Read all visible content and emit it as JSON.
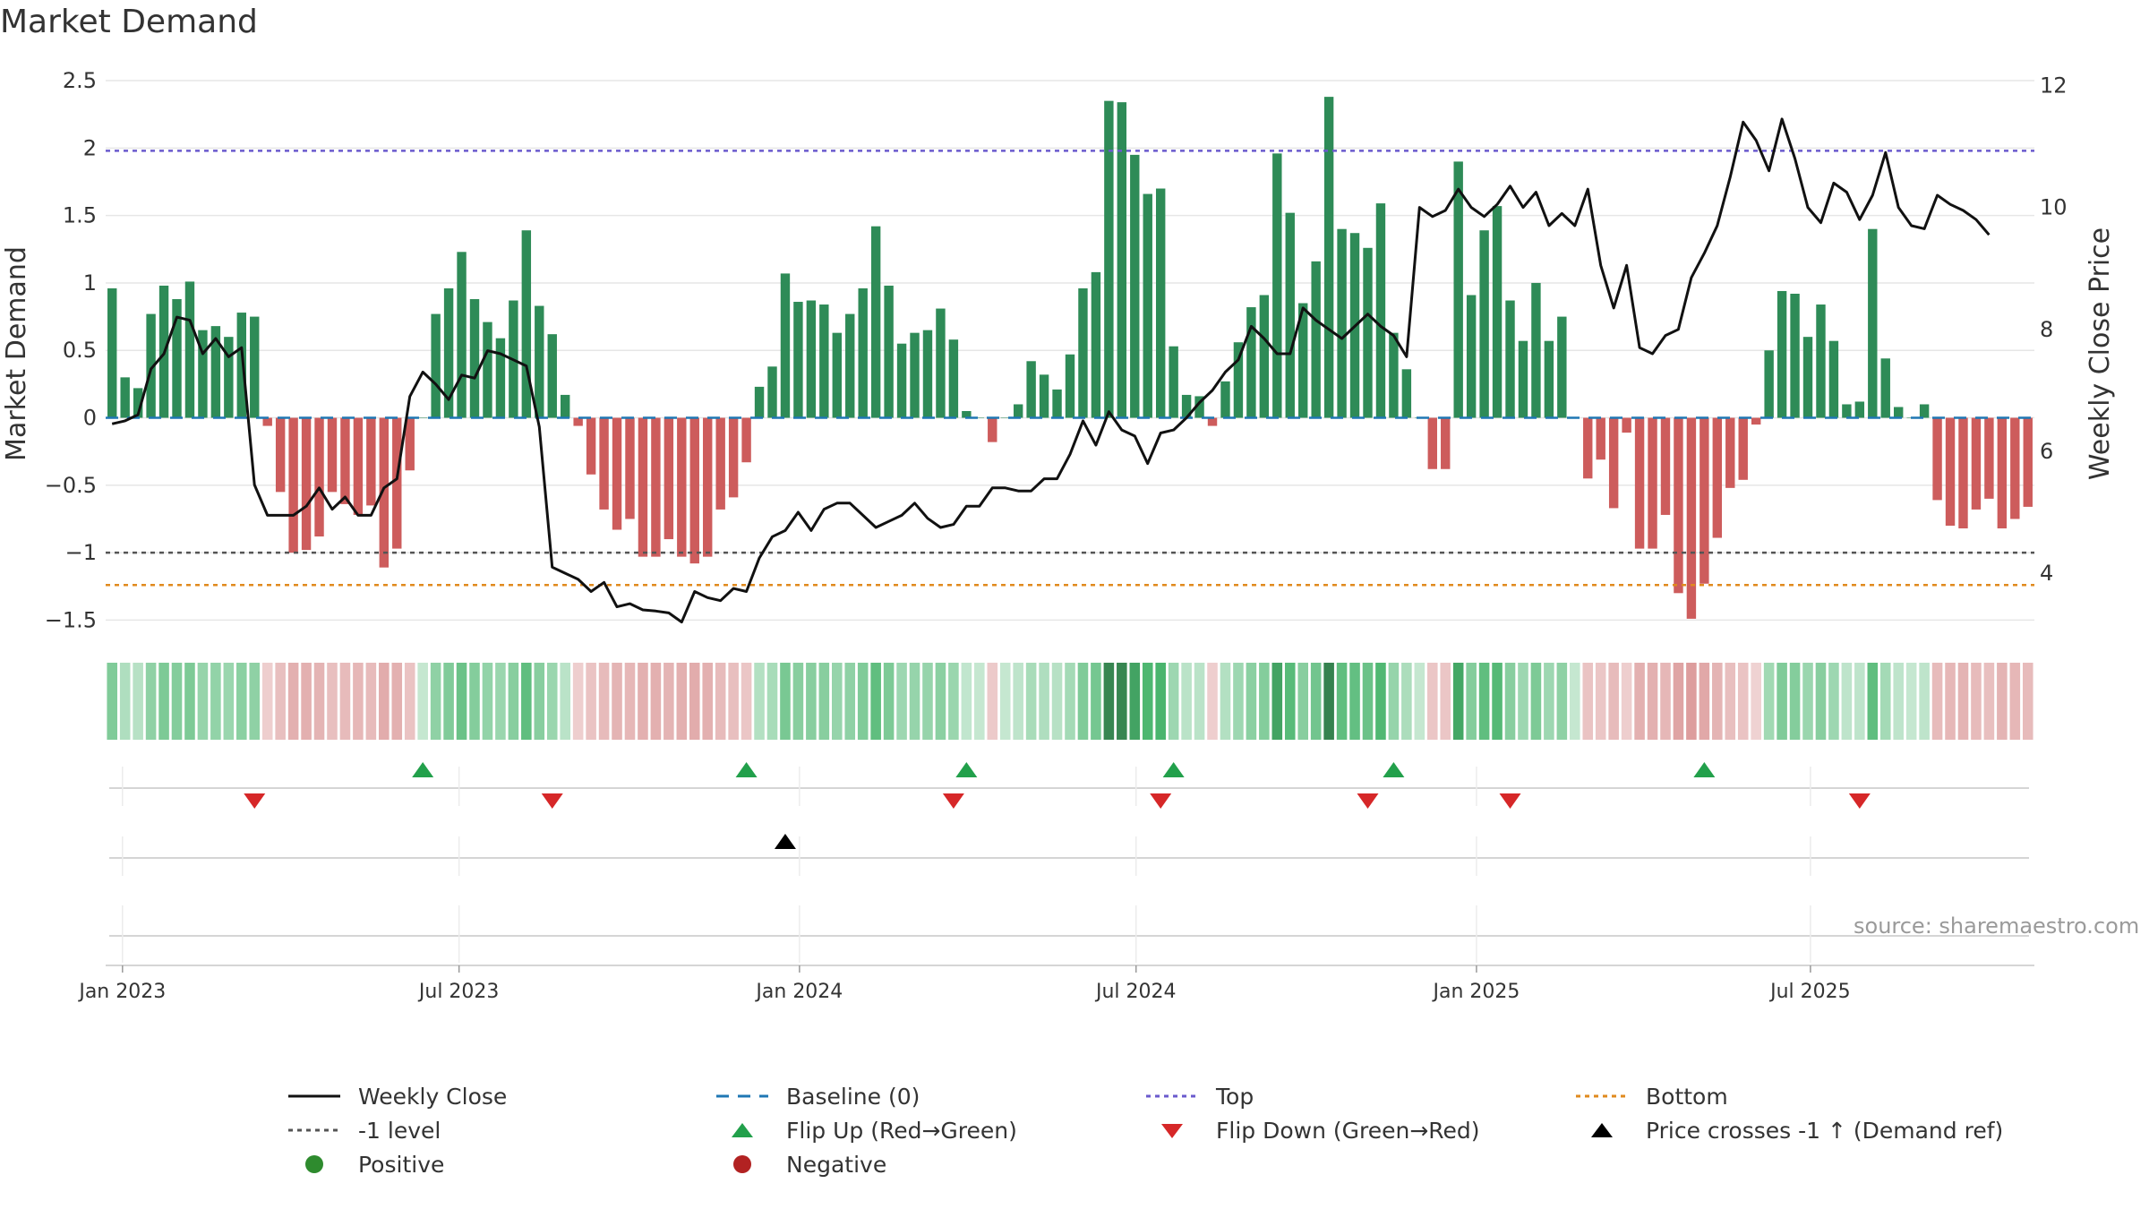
{
  "title": "Market Demand",
  "source": "source: sharemaestro.com",
  "colors": {
    "positive": "#2e8b57",
    "negative": "#cd5c5c",
    "weekly_close": "#111111",
    "top": "#6a5acd",
    "bottom": "#e08a1e",
    "minus_one": "#555555",
    "baseline": "#1f77b4",
    "flip_up": "#22a04b",
    "flip_down": "#d62728",
    "cross": "#000000"
  },
  "legend": [
    {
      "key": "weekly",
      "label": "Weekly Close",
      "icon": "solid-line"
    },
    {
      "key": "baseline",
      "label": "Baseline (0)",
      "icon": "dashed-line"
    },
    {
      "key": "top",
      "label": "Top",
      "icon": "dotted-line"
    },
    {
      "key": "bottom",
      "label": "Bottom",
      "icon": "dotted-line"
    },
    {
      "key": "minus1",
      "label": "-1 level",
      "icon": "dotted-line"
    },
    {
      "key": "flipup",
      "label": "Flip Up (Red→Green)",
      "icon": "triangle-up"
    },
    {
      "key": "flipdown",
      "label": "Flip Down (Green→Red)",
      "icon": "triangle-down"
    },
    {
      "key": "cross",
      "label": "Price crosses -1 ↑ (Demand ref)",
      "icon": "triangle-up"
    },
    {
      "key": "positive",
      "label": "Positive",
      "icon": "circle"
    },
    {
      "key": "negative",
      "label": "Negative",
      "icon": "circle"
    }
  ],
  "chart_data": {
    "type": "bar",
    "title": "Market Demand",
    "xlabel": "",
    "ylabel": "Market Demand",
    "y2label": "Weekly Close Price",
    "ylim": [
      -1.65,
      2.6
    ],
    "y2lim": [
      2.9,
      12.3
    ],
    "yticks": [
      2.5,
      2,
      1.5,
      1,
      0.5,
      0,
      -0.5,
      -1,
      -1.5
    ],
    "ytick_labels": [
      "2.5",
      "2",
      "1.5",
      "1",
      "0.5",
      "0",
      "−0.5",
      "−1",
      "−1.5"
    ],
    "y2ticks": [
      12,
      10,
      8,
      6,
      4
    ],
    "y2tick_labels": [
      "12",
      "10",
      "8",
      "6",
      "4"
    ],
    "x_start": "2022-12-23",
    "x_step_weeks": 1,
    "xticks": [
      {
        "label": "Jan 2023",
        "week": 1.3
      },
      {
        "label": "Jul 2023",
        "week": 27.3
      },
      {
        "label": "Jan 2024",
        "week": 53.6
      },
      {
        "label": "Jul 2024",
        "week": 79.6
      },
      {
        "label": "Jan 2025",
        "week": 105.9
      },
      {
        "label": "Jul 2025",
        "week": 131.7
      }
    ],
    "reference_lines": {
      "top": 1.98,
      "minus_one": -1.0,
      "bottom": -1.24,
      "baseline": 0
    },
    "series": [
      {
        "name": "Market Demand",
        "values": [
          0.96,
          0.3,
          0.22,
          0.77,
          0.98,
          0.88,
          1.01,
          0.65,
          0.68,
          0.6,
          0.78,
          0.75,
          -0.06,
          -0.55,
          -1.0,
          -0.98,
          -0.88,
          -0.55,
          -0.64,
          -0.72,
          -0.65,
          -1.11,
          -0.97,
          -0.39,
          0.0,
          0.77,
          0.96,
          1.23,
          0.88,
          0.71,
          0.59,
          0.87,
          1.39,
          0.83,
          0.62,
          0.17,
          -0.06,
          -0.42,
          -0.68,
          -0.83,
          -0.75,
          -1.03,
          -1.03,
          -0.9,
          -1.03,
          -1.08,
          -1.03,
          -0.68,
          -0.59,
          -0.33,
          0.23,
          0.38,
          1.07,
          0.86,
          0.87,
          0.84,
          0.63,
          0.77,
          0.96,
          1.42,
          0.98,
          0.55,
          0.63,
          0.65,
          0.81,
          0.58,
          0.05,
          0.0,
          -0.18,
          0.0,
          0.1,
          0.42,
          0.32,
          0.21,
          0.47,
          0.96,
          1.08,
          2.35,
          2.34,
          1.95,
          1.66,
          1.7,
          0.53,
          0.17,
          0.16,
          -0.06,
          0.27,
          0.56,
          0.82,
          0.91,
          1.96,
          1.52,
          0.85,
          1.16,
          2.38,
          1.4,
          1.37,
          1.26,
          1.59,
          0.63,
          0.36,
          0.0,
          -0.38,
          -0.38,
          1.9,
          0.91,
          1.39,
          1.57,
          0.87,
          0.57,
          1.0,
          0.57,
          0.75,
          0.0,
          -0.45,
          -0.31,
          -0.67,
          -0.11,
          -0.97,
          -0.97,
          -0.72,
          -1.3,
          -1.49,
          -1.23,
          -0.89,
          -0.52,
          -0.46,
          -0.05,
          0.5,
          0.94,
          0.92,
          0.6,
          0.84,
          0.57,
          0.1,
          0.12,
          1.4,
          0.44,
          0.08,
          0.0,
          0.1,
          -0.61,
          -0.8,
          -0.82,
          -0.68,
          -0.6,
          -0.82,
          -0.75,
          -0.66
        ]
      },
      {
        "name": "Weekly Close",
        "axis": "right",
        "values": [
          6.45,
          6.5,
          6.6,
          7.35,
          7.6,
          8.2,
          8.15,
          7.6,
          7.85,
          7.55,
          7.7,
          5.45,
          4.95,
          4.95,
          4.95,
          5.1,
          5.4,
          5.05,
          5.25,
          4.95,
          4.95,
          5.4,
          5.55,
          6.9,
          7.3,
          7.1,
          6.85,
          7.25,
          7.2,
          7.65,
          7.6,
          7.5,
          7.4,
          6.4,
          4.1,
          4.0,
          3.9,
          3.7,
          3.85,
          3.45,
          3.5,
          3.4,
          3.38,
          3.35,
          3.2,
          3.7,
          3.6,
          3.55,
          3.75,
          3.7,
          4.25,
          4.6,
          4.7,
          5.0,
          4.7,
          5.05,
          5.15,
          5.15,
          4.95,
          4.75,
          4.85,
          4.95,
          5.15,
          4.9,
          4.75,
          4.8,
          5.1,
          5.1,
          5.4,
          5.4,
          5.35,
          5.35,
          5.55,
          5.55,
          5.95,
          6.5,
          6.1,
          6.65,
          6.35,
          6.25,
          5.8,
          6.3,
          6.35,
          6.55,
          6.8,
          7.0,
          7.3,
          7.5,
          8.05,
          7.85,
          7.6,
          7.6,
          8.35,
          8.15,
          8.0,
          7.85,
          8.05,
          8.25,
          8.05,
          7.9,
          7.55,
          10.0,
          9.85,
          9.95,
          10.3,
          10.0,
          9.85,
          10.05,
          10.35,
          10.0,
          10.25,
          9.7,
          9.9,
          9.7,
          10.3,
          9.05,
          8.35,
          9.05,
          7.7,
          7.6,
          7.9,
          8.0,
          8.85,
          9.25,
          9.7,
          10.5,
          11.4,
          11.1,
          10.6,
          11.45,
          10.8,
          10.0,
          9.75,
          10.4,
          10.25,
          9.8,
          10.2,
          10.9,
          10.0,
          9.7,
          9.65,
          10.2,
          10.05,
          9.95,
          9.8,
          9.55
        ]
      },
      {
        "name": "Demand strength band",
        "values": "same as Market Demand (color intensity)"
      }
    ],
    "flip_up_weeks": [
      24.5,
      49.5,
      66.5,
      82.5,
      99.5,
      123.5
    ],
    "flip_down_weeks": [
      11.5,
      34.5,
      65.5,
      81.5,
      97.5,
      108.5,
      135.5
    ],
    "price_cross_weeks": [
      52.5
    ]
  }
}
